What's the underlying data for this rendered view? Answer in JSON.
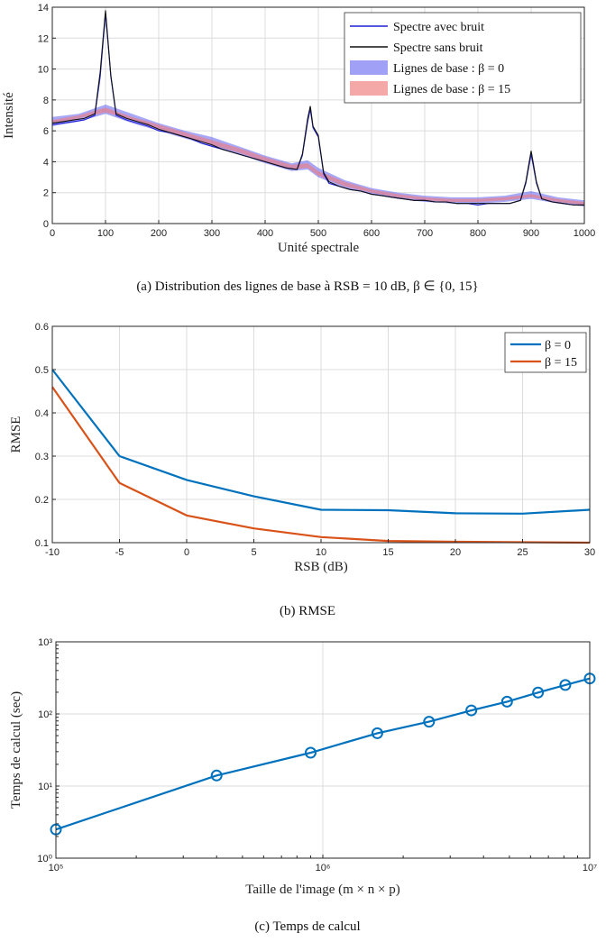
{
  "chart_data": [
    {
      "type": "line",
      "caption": "(a)  Distribution des lignes de base à RSB = 10 dB, β ∈ {0, 15}",
      "xlabel": "Unité spectrale",
      "ylabel": "Intensité",
      "xlim": [
        0,
        1000
      ],
      "ylim": [
        0,
        14
      ],
      "xticks": [
        0,
        100,
        200,
        300,
        400,
        500,
        600,
        700,
        800,
        900,
        1000
      ],
      "yticks": [
        0,
        2,
        4,
        6,
        8,
        10,
        12,
        14
      ],
      "grid": true,
      "legend_position": "top-right",
      "legend": [
        "Spectre avec bruit",
        "Spectre sans bruit",
        "Lignes de base : β = 0",
        "Lignes de base : β = 15"
      ],
      "series": [
        {
          "name": "Spectre avec bruit",
          "color": "#1f1fd6",
          "x": [
            0,
            20,
            40,
            60,
            80,
            90,
            100,
            110,
            120,
            140,
            160,
            180,
            200,
            220,
            240,
            260,
            280,
            300,
            320,
            340,
            360,
            380,
            400,
            420,
            440,
            460,
            470,
            480,
            485,
            490,
            500,
            510,
            520,
            540,
            560,
            580,
            600,
            620,
            640,
            660,
            680,
            700,
            720,
            740,
            760,
            780,
            800,
            820,
            840,
            860,
            880,
            890,
            900,
            910,
            920,
            940,
            960,
            980,
            1000
          ],
          "y": [
            6.4,
            6.5,
            6.6,
            6.7,
            7.0,
            9.5,
            13.6,
            9.5,
            7.0,
            6.7,
            6.5,
            6.3,
            6.0,
            5.9,
            5.7,
            5.5,
            5.2,
            5.0,
            4.8,
            4.6,
            4.4,
            4.2,
            4.0,
            3.8,
            3.6,
            3.5,
            4.4,
            6.6,
            7.4,
            6.2,
            5.6,
            3.2,
            2.6,
            2.4,
            2.2,
            2.1,
            1.9,
            1.8,
            1.7,
            1.6,
            1.5,
            1.5,
            1.4,
            1.4,
            1.3,
            1.3,
            1.2,
            1.3,
            1.3,
            1.3,
            1.5,
            2.6,
            4.5,
            2.6,
            1.6,
            1.4,
            1.3,
            1.2,
            1.2
          ]
        },
        {
          "name": "Spectre sans bruit",
          "color": "#111111",
          "x": [
            0,
            20,
            40,
            60,
            80,
            90,
            100,
            110,
            120,
            140,
            160,
            180,
            200,
            220,
            240,
            260,
            280,
            300,
            320,
            340,
            360,
            380,
            400,
            420,
            440,
            460,
            470,
            480,
            485,
            490,
            500,
            510,
            520,
            540,
            560,
            580,
            600,
            620,
            640,
            660,
            680,
            700,
            720,
            740,
            760,
            780,
            800,
            820,
            840,
            860,
            880,
            890,
            900,
            910,
            920,
            940,
            960,
            980,
            1000
          ],
          "y": [
            6.5,
            6.6,
            6.7,
            6.8,
            7.1,
            9.8,
            13.8,
            9.6,
            7.1,
            6.8,
            6.6,
            6.4,
            6.1,
            5.9,
            5.7,
            5.5,
            5.3,
            5.1,
            4.8,
            4.6,
            4.4,
            4.2,
            4.0,
            3.8,
            3.6,
            3.5,
            4.5,
            6.8,
            7.6,
            6.3,
            5.7,
            3.3,
            2.7,
            2.4,
            2.2,
            2.1,
            1.9,
            1.8,
            1.7,
            1.6,
            1.5,
            1.5,
            1.4,
            1.4,
            1.3,
            1.3,
            1.3,
            1.3,
            1.3,
            1.3,
            1.5,
            2.7,
            4.7,
            2.7,
            1.6,
            1.4,
            1.3,
            1.2,
            1.2
          ]
        },
        {
          "name": "Lignes de base : β = 0",
          "color": "#6d6df2",
          "band": true,
          "x": [
            0,
            50,
            100,
            150,
            200,
            250,
            300,
            350,
            400,
            450,
            480,
            500,
            550,
            600,
            650,
            700,
            750,
            800,
            850,
            900,
            950,
            1000
          ],
          "lower": [
            6.3,
            6.6,
            7.1,
            6.5,
            6.0,
            5.5,
            5.0,
            4.5,
            3.9,
            3.4,
            3.5,
            3.0,
            2.3,
            1.9,
            1.6,
            1.4,
            1.3,
            1.3,
            1.4,
            1.6,
            1.3,
            1.1
          ],
          "upper": [
            6.9,
            7.1,
            7.7,
            7.1,
            6.5,
            6.0,
            5.6,
            5.0,
            4.4,
            3.9,
            4.1,
            3.6,
            2.8,
            2.3,
            2.0,
            1.8,
            1.7,
            1.7,
            1.8,
            2.1,
            1.7,
            1.5
          ]
        },
        {
          "name": "Lignes de base : β = 15",
          "color": "#f07a7a",
          "band": true,
          "x": [
            0,
            50,
            100,
            150,
            200,
            250,
            300,
            350,
            400,
            450,
            480,
            500,
            550,
            600,
            650,
            700,
            750,
            800,
            850,
            900,
            950,
            1000
          ],
          "lower": [
            6.5,
            6.8,
            7.2,
            6.7,
            6.1,
            5.6,
            5.1,
            4.6,
            4.0,
            3.5,
            3.6,
            3.1,
            2.4,
            2.0,
            1.7,
            1.5,
            1.4,
            1.4,
            1.5,
            1.7,
            1.4,
            1.2
          ],
          "upper": [
            6.7,
            7.0,
            7.5,
            6.9,
            6.4,
            5.9,
            5.4,
            4.9,
            4.3,
            3.8,
            3.9,
            3.4,
            2.7,
            2.2,
            1.9,
            1.7,
            1.6,
            1.6,
            1.7,
            1.9,
            1.6,
            1.4
          ]
        }
      ]
    },
    {
      "type": "line",
      "caption": "(b)  RMSE",
      "xlabel": "RSB (dB)",
      "ylabel": "RMSE",
      "xlim": [
        -10,
        30
      ],
      "ylim": [
        0.1,
        0.6
      ],
      "xticks": [
        -10,
        -5,
        0,
        5,
        10,
        15,
        20,
        25,
        30
      ],
      "yticks": [
        0.1,
        0.2,
        0.3,
        0.4,
        0.5,
        0.6
      ],
      "grid": true,
      "legend_position": "top-right",
      "legend": [
        "β = 0",
        "β = 15"
      ],
      "series": [
        {
          "name": "β = 0",
          "color": "#0072bd",
          "x": [
            -10,
            -5,
            0,
            5,
            10,
            15,
            20,
            25,
            30
          ],
          "values": [
            0.5,
            0.3,
            0.245,
            0.207,
            0.176,
            0.175,
            0.168,
            0.167,
            0.176
          ]
        },
        {
          "name": "β = 15",
          "color": "#d95319",
          "x": [
            -10,
            -5,
            0,
            5,
            10,
            15,
            20,
            25,
            30
          ],
          "values": [
            0.46,
            0.238,
            0.163,
            0.133,
            0.113,
            0.104,
            0.102,
            0.101,
            0.1
          ]
        }
      ]
    },
    {
      "type": "line",
      "caption": "(c)  Temps de calcul",
      "xlabel": "Taille de l'image (m × n × p)",
      "ylabel": "Temps de calcul (sec)",
      "xscale": "log",
      "yscale": "log",
      "xlim": [
        100000,
        10000000
      ],
      "ylim": [
        1,
        1000
      ],
      "xtick_labels": [
        "10⁵",
        "10⁶",
        "10⁷"
      ],
      "ytick_labels": [
        "10⁰",
        "10¹",
        "10²",
        "10³"
      ],
      "grid": true,
      "series": [
        {
          "color": "#0072bd",
          "marker": "circle",
          "x": [
            100000,
            400000,
            900000,
            1600000,
            2500000,
            3600000,
            4900000,
            6400000,
            8100000,
            10000000
          ],
          "values": [
            2.5,
            14,
            29,
            54,
            78,
            112,
            148,
            198,
            252,
            310
          ]
        }
      ]
    }
  ]
}
